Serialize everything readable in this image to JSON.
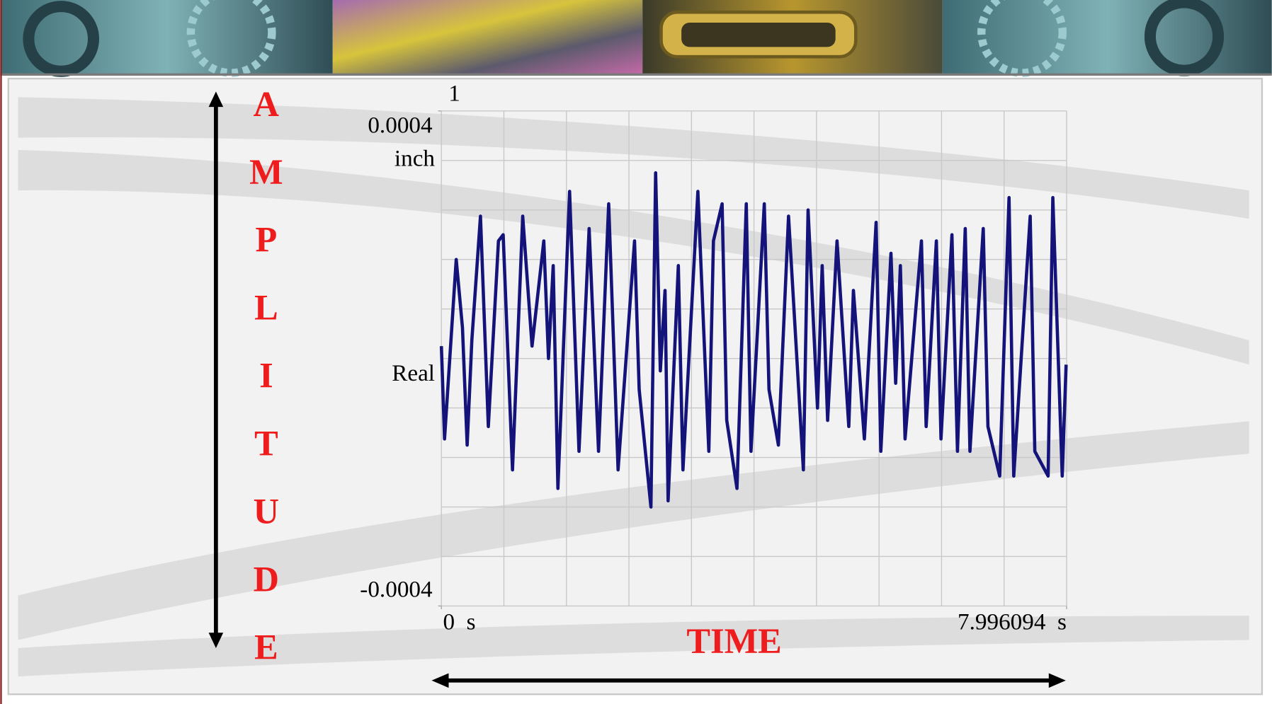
{
  "chart_data": {
    "type": "line",
    "trace_label": "1",
    "y_label": "Real",
    "y_unit": "inch",
    "x_annotation": "TIME",
    "y_annotation_letters": [
      "A",
      "M",
      "P",
      "L",
      "I",
      "T",
      "U",
      "D",
      "E"
    ],
    "xlim": [
      0,
      7.996094
    ],
    "ylim": [
      -0.0004,
      0.0004
    ],
    "xticks": [
      {
        "value": 0,
        "label": "0  s"
      },
      {
        "value": 7.996094,
        "label": "7.996094  s"
      }
    ],
    "yticks": [
      0.0004,
      -0.0004
    ],
    "grid": true,
    "grid_divisions": 10,
    "x": [
      0,
      0.04,
      0.19,
      0.27,
      0.33,
      0.39,
      0.5,
      0.6,
      0.73,
      0.79,
      0.91,
      1.04,
      1.16,
      1.31,
      1.37,
      1.43,
      1.49,
      1.64,
      1.76,
      1.89,
      2.01,
      2.14,
      2.26,
      2.47,
      2.53,
      2.68,
      2.74,
      2.8,
      2.86,
      2.9,
      3.03,
      3.09,
      3.28,
      3.42,
      3.48,
      3.59,
      3.65,
      3.78,
      3.9,
      3.96,
      4.13,
      4.19,
      4.31,
      4.44,
      4.63,
      4.69,
      4.81,
      4.87,
      4.94,
      5.06,
      5.21,
      5.27,
      5.41,
      5.56,
      5.62,
      5.75,
      5.81,
      5.87,
      5.93,
      6.14,
      6.2,
      6.33,
      6.39,
      6.53,
      6.6,
      6.7,
      6.76,
      6.93,
      6.99,
      7.14,
      7.26,
      7.32,
      7.53,
      7.59,
      7.76,
      7.82,
      7.94,
      7.99
    ],
    "series": [
      {
        "color": "#13137a",
        "values": [
          2e-05,
          -0.00013,
          0.00016,
          5e-05,
          -0.00014,
          3e-05,
          0.00023,
          -0.00011,
          0.00019,
          0.0002,
          -0.00018,
          0.00023,
          2e-05,
          0.00019,
          0,
          0.00015,
          -0.00021,
          0.00027,
          -0.00015,
          0.00021,
          -0.00015,
          0.00025,
          -0.00018,
          0.00019,
          -5e-05,
          -0.00024,
          0.0003,
          -2e-05,
          0.00011,
          -0.00023,
          0.00015,
          -0.00018,
          0.00027,
          -0.00015,
          0.00019,
          0.00025,
          -0.0001,
          -0.00021,
          0.00025,
          -0.00015,
          0.00025,
          -5e-05,
          -0.00014,
          0.00023,
          -0.00018,
          0.00024,
          -8e-05,
          0.00015,
          -0.0001,
          0.00019,
          -0.00011,
          0.00011,
          -0.00013,
          0.00022,
          -0.00015,
          0.00017,
          -4e-05,
          0.00015,
          -0.00013,
          0.00019,
          -0.00011,
          0.00019,
          -0.00013,
          0.0002,
          -0.00015,
          0.00021,
          -0.00015,
          0.00021,
          -0.00011,
          -0.00019,
          0.00026,
          -0.00019,
          0.00023,
          -0.00015,
          -0.00019,
          0.00026,
          -0.00019,
          -1e-05
        ]
      }
    ]
  }
}
